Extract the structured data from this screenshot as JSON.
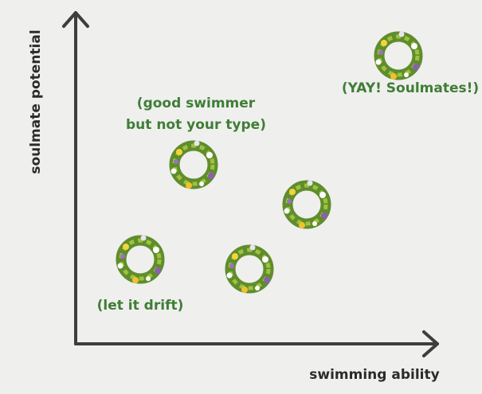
{
  "axes": {
    "y_label": "soulmate potential",
    "x_label": "swimming ability"
  },
  "annotations": {
    "soulmates": "(YAY! Soulmates!)",
    "good_swimmer": [
      "(good swimmer",
      "but not your type)"
    ],
    "drift": "(let it drift)"
  }
}
